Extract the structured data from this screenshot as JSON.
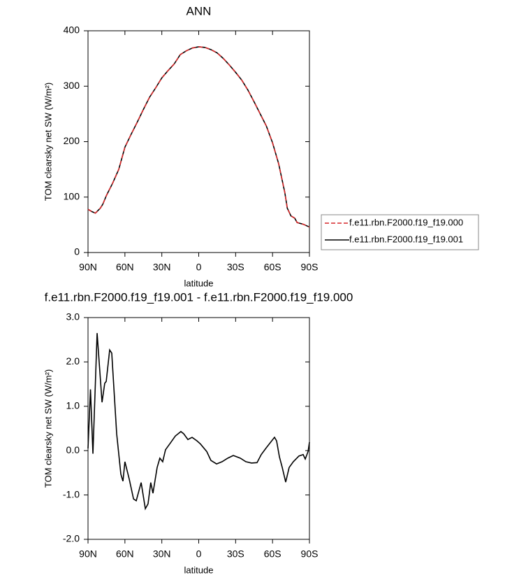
{
  "chart_data": [
    {
      "type": "line",
      "title": "ANN",
      "x_label": "latitude",
      "y_label": "TOM clearsky net SW (W/m²)",
      "x": [
        90,
        87,
        84,
        80,
        78,
        75,
        70,
        65,
        60,
        55,
        50,
        45,
        40,
        35,
        30,
        25,
        20,
        15,
        10,
        5,
        0,
        -5,
        -10,
        -15,
        -20,
        -25,
        -30,
        -35,
        -40,
        -45,
        -50,
        -55,
        -60,
        -65,
        -70,
        -72,
        -75,
        -78,
        -80,
        -85,
        -90
      ],
      "series": [
        {
          "name": "f.e11.rbn.F2000.f19_f19.000",
          "color": "#d62728",
          "line_style": "dashed",
          "values": [
            78,
            74,
            71,
            80,
            87,
            103,
            125,
            150,
            190,
            213,
            235,
            258,
            280,
            297,
            315,
            328,
            340,
            357,
            364,
            369,
            371,
            370,
            366,
            360,
            350,
            338,
            325,
            311,
            293,
            272,
            250,
            228,
            198,
            160,
            108,
            80,
            66,
            62,
            54,
            51,
            46
          ]
        },
        {
          "name": "f.e11.rbn.F2000.f19_f19.001",
          "color": "#000000",
          "line_style": "solid",
          "values": [
            78,
            74,
            71,
            80,
            87,
            103,
            125,
            150,
            190,
            213,
            235,
            258,
            280,
            297,
            315,
            328,
            340,
            357,
            364,
            369,
            371,
            370,
            366,
            360,
            350,
            338,
            325,
            311,
            293,
            272,
            250,
            228,
            198,
            160,
            108,
            80,
            66,
            62,
            54,
            51,
            46
          ]
        }
      ],
      "xlim": [
        90,
        -90
      ],
      "xticks": [
        {
          "value": 90,
          "label": "90N"
        },
        {
          "value": 60,
          "label": "60N"
        },
        {
          "value": 30,
          "label": "30N"
        },
        0,
        {
          "value": -30,
          "label": "30S"
        },
        {
          "value": -60,
          "label": "60S"
        },
        {
          "value": -90,
          "label": "90S"
        }
      ],
      "ylim": [
        0,
        400
      ],
      "yticks": [
        0,
        100,
        200,
        300,
        400
      ],
      "legend": "right"
    },
    {
      "type": "line",
      "title": "f.e11.rbn.F2000.f19_f19.001 - f.e11.rbn.F2000.f19_f19.000",
      "x_label": "latitude",
      "y_label": "TOM clearsky net SW (W/m²)",
      "x": [
        90,
        88,
        86,
        82.6,
        78.6,
        76.4,
        75.2,
        72.4,
        70.7,
        66.7,
        63.3,
        61.6,
        60,
        56.5,
        53,
        50.8,
        46.8,
        43.4,
        41.2,
        39,
        37.2,
        33.8,
        31.6,
        29.3,
        27,
        23.6,
        19,
        14.5,
        12.2,
        8.8,
        5.4,
        1.4,
        -1.4,
        -6.5,
        -9.9,
        -14.5,
        -19,
        -23.6,
        -28.1,
        -33.8,
        -38.3,
        -42.9,
        -47.4,
        -50.8,
        -54.8,
        -58.2,
        -61.6,
        -63.3,
        -65.6,
        -67.9,
        -70.7,
        -73.5,
        -76.9,
        -81.5,
        -84.9,
        -86.6,
        -88.9,
        -90
      ],
      "values": [
        0.05,
        1.38,
        -0.07,
        2.65,
        1.09,
        1.52,
        1.56,
        2.27,
        2.2,
        0.38,
        -0.53,
        -0.69,
        -0.25,
        -0.64,
        -1.09,
        -1.13,
        -0.72,
        -1.31,
        -1.2,
        -0.72,
        -0.96,
        -0.38,
        -0.17,
        -0.25,
        0.02,
        0.15,
        0.33,
        0.43,
        0.38,
        0.25,
        0.3,
        0.22,
        0.15,
        -0.02,
        -0.22,
        -0.3,
        -0.25,
        -0.17,
        -0.11,
        -0.17,
        -0.25,
        -0.28,
        -0.27,
        -0.09,
        0.06,
        0.18,
        0.3,
        0.22,
        -0.14,
        -0.38,
        -0.71,
        -0.38,
        -0.25,
        -0.12,
        -0.09,
        -0.19,
        -0.02,
        0.19
      ],
      "color": "#000000",
      "xlim": [
        90,
        -90
      ],
      "xticks": [
        {
          "value": 90,
          "label": "90N"
        },
        {
          "value": 60,
          "label": "60N"
        },
        {
          "value": 30,
          "label": "30N"
        },
        0,
        {
          "value": -30,
          "label": "30S"
        },
        {
          "value": -60,
          "label": "60S"
        },
        {
          "value": -90,
          "label": "90S"
        }
      ],
      "ylim": [
        -2,
        3
      ],
      "yticks": [
        {
          "value": 3,
          "label": "3.0"
        },
        {
          "value": 2,
          "label": "2.0"
        },
        {
          "value": 1,
          "label": "1.0"
        },
        {
          "value": 0,
          "label": "0.0"
        },
        {
          "value": -1,
          "label": "-1.0"
        },
        {
          "value": -2,
          "label": "-2.0"
        }
      ]
    }
  ]
}
